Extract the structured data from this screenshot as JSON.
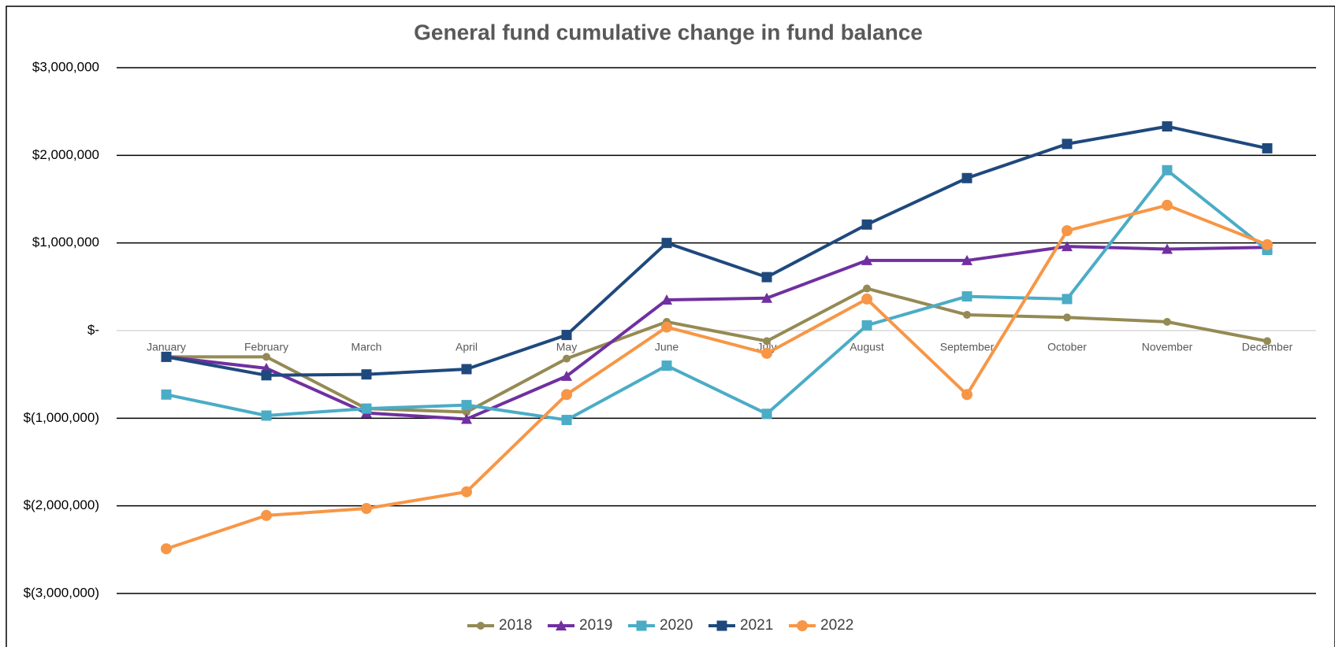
{
  "chart_data": {
    "type": "line",
    "title": "General fund cumulative change in fund balance",
    "categories": [
      "January",
      "February",
      "March",
      "April",
      "May",
      "June",
      "July",
      "August",
      "September",
      "October",
      "November",
      "December"
    ],
    "ylim": [
      -3000000,
      3000000
    ],
    "yticks": [
      {
        "value": 3000000,
        "label": "$3,000,000"
      },
      {
        "value": 2000000,
        "label": "$2,000,000"
      },
      {
        "value": 1000000,
        "label": "$1,000,000"
      },
      {
        "value": 0,
        "label": "$-"
      },
      {
        "value": -1000000,
        "label": "$(1,000,000)"
      },
      {
        "value": -2000000,
        "label": "$(2,000,000)"
      },
      {
        "value": -3000000,
        "label": "$(3,000,000)"
      }
    ],
    "grid": true,
    "legend": "bottom",
    "series": [
      {
        "name": "2018",
        "color": "#948A54",
        "marker": "circle",
        "values": [
          -300000,
          -300000,
          -890000,
          -930000,
          -320000,
          100000,
          -120000,
          480000,
          180000,
          150000,
          100000,
          -120000
        ]
      },
      {
        "name": "2019",
        "color": "#7030A0",
        "marker": "triangle",
        "values": [
          -300000,
          -430000,
          -940000,
          -1010000,
          -520000,
          350000,
          370000,
          800000,
          800000,
          960000,
          930000,
          950000
        ]
      },
      {
        "name": "2020",
        "color": "#4BACC6",
        "marker": "square",
        "values": [
          -730000,
          -970000,
          -890000,
          -850000,
          -1020000,
          -400000,
          -950000,
          60000,
          390000,
          360000,
          1830000,
          920000
        ]
      },
      {
        "name": "2021",
        "color": "#1F497D",
        "marker": "square",
        "values": [
          -300000,
          -510000,
          -500000,
          -440000,
          -50000,
          1000000,
          610000,
          1210000,
          1740000,
          2130000,
          2330000,
          2080000
        ]
      },
      {
        "name": "2022",
        "color": "#F79646",
        "marker": "bigcircle",
        "values": [
          -2490000,
          -2110000,
          -2030000,
          -1840000,
          -730000,
          40000,
          -260000,
          360000,
          -730000,
          1140000,
          1430000,
          980000
        ]
      }
    ]
  }
}
